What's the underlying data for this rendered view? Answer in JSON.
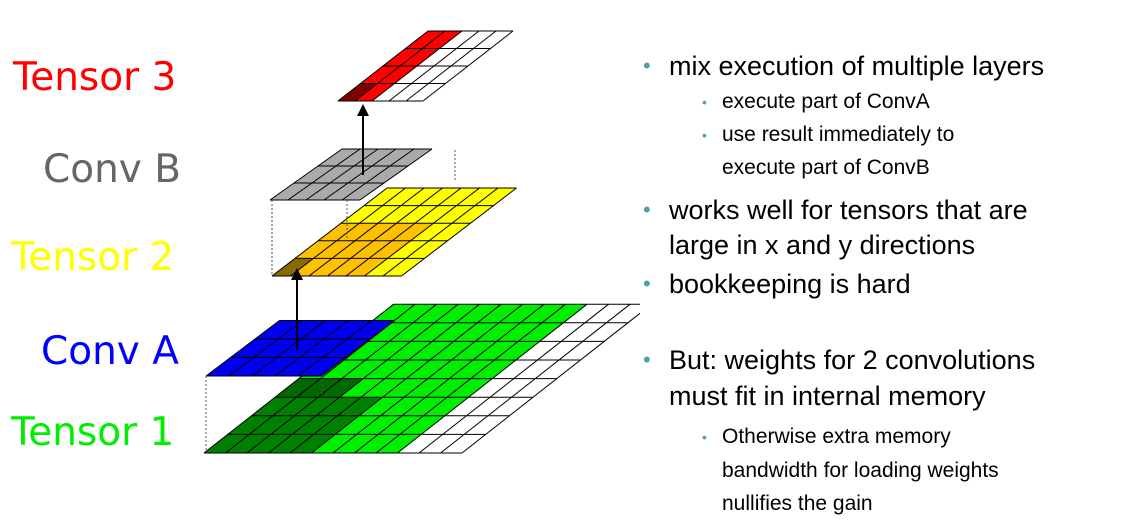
{
  "labels": {
    "tensor3": "Tensor 3",
    "convb": "Conv B",
    "tensor2": "Tensor 2",
    "conva": "Conv A",
    "tensor1": "Tensor 1"
  },
  "bullets": {
    "b1": "mix execution of multiple layers",
    "b1_1": "execute part of ConvA",
    "b1_2a": "use result immediately to",
    "b1_2b": "execute part of ConvB",
    "b2a": "works well for tensors that are",
    "b2b": "large in x and y directions",
    "b3": "bookkeeping is hard",
    "b4a": "But: weights for 2 convolutions",
    "b4b": "must fit in internal memory",
    "b4_1a": "Otherwise extra memory",
    "b4_1b": "bandwidth for loading weights",
    "b4_1c": "nullifies the gain"
  },
  "colors": {
    "tensor3": "#ff0000",
    "convb": "#666666",
    "tensor2": "#ffff00",
    "conva": "#0000ff",
    "tensor1": "#00ee00",
    "bullet": "#4aa3a3"
  }
}
